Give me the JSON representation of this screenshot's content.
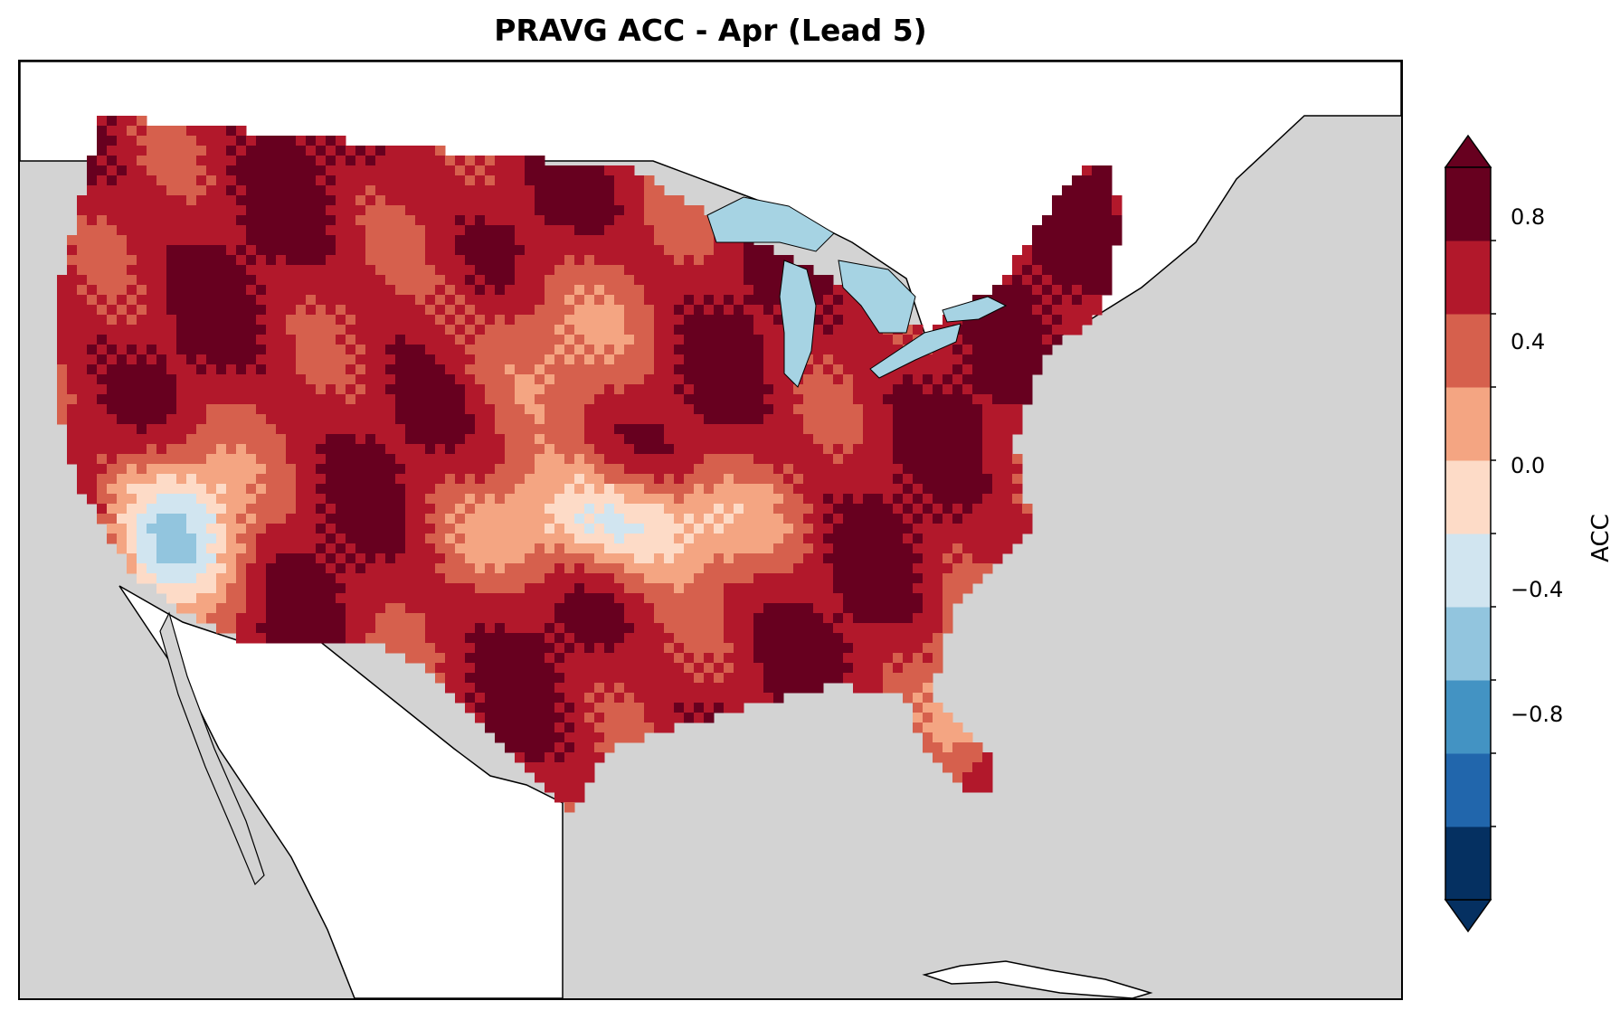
{
  "title": "PRAVG ACC - Apr (Lead 5)",
  "colorbar": {
    "label": "ACC",
    "tick_labels": [
      "0.8",
      "0.4",
      "0.0",
      "−0.4",
      "−0.8"
    ],
    "tick_values": [
      0.8,
      0.4,
      0.0,
      -0.4,
      -0.8
    ],
    "vmin": -1.0,
    "vmax": 1.0,
    "extend": "both",
    "colors": [
      "#053061",
      "#2166ac",
      "#4393c3",
      "#92c5de",
      "#d1e5f0",
      "#fddbc7",
      "#f4a582",
      "#d6604d",
      "#b2182b",
      "#67001f"
    ]
  },
  "map": {
    "ocean_color": "#d3d3d3",
    "land_color": "#ffffff",
    "lake_color": "#a6d3e3",
    "region": "Contiguous United States"
  }
}
